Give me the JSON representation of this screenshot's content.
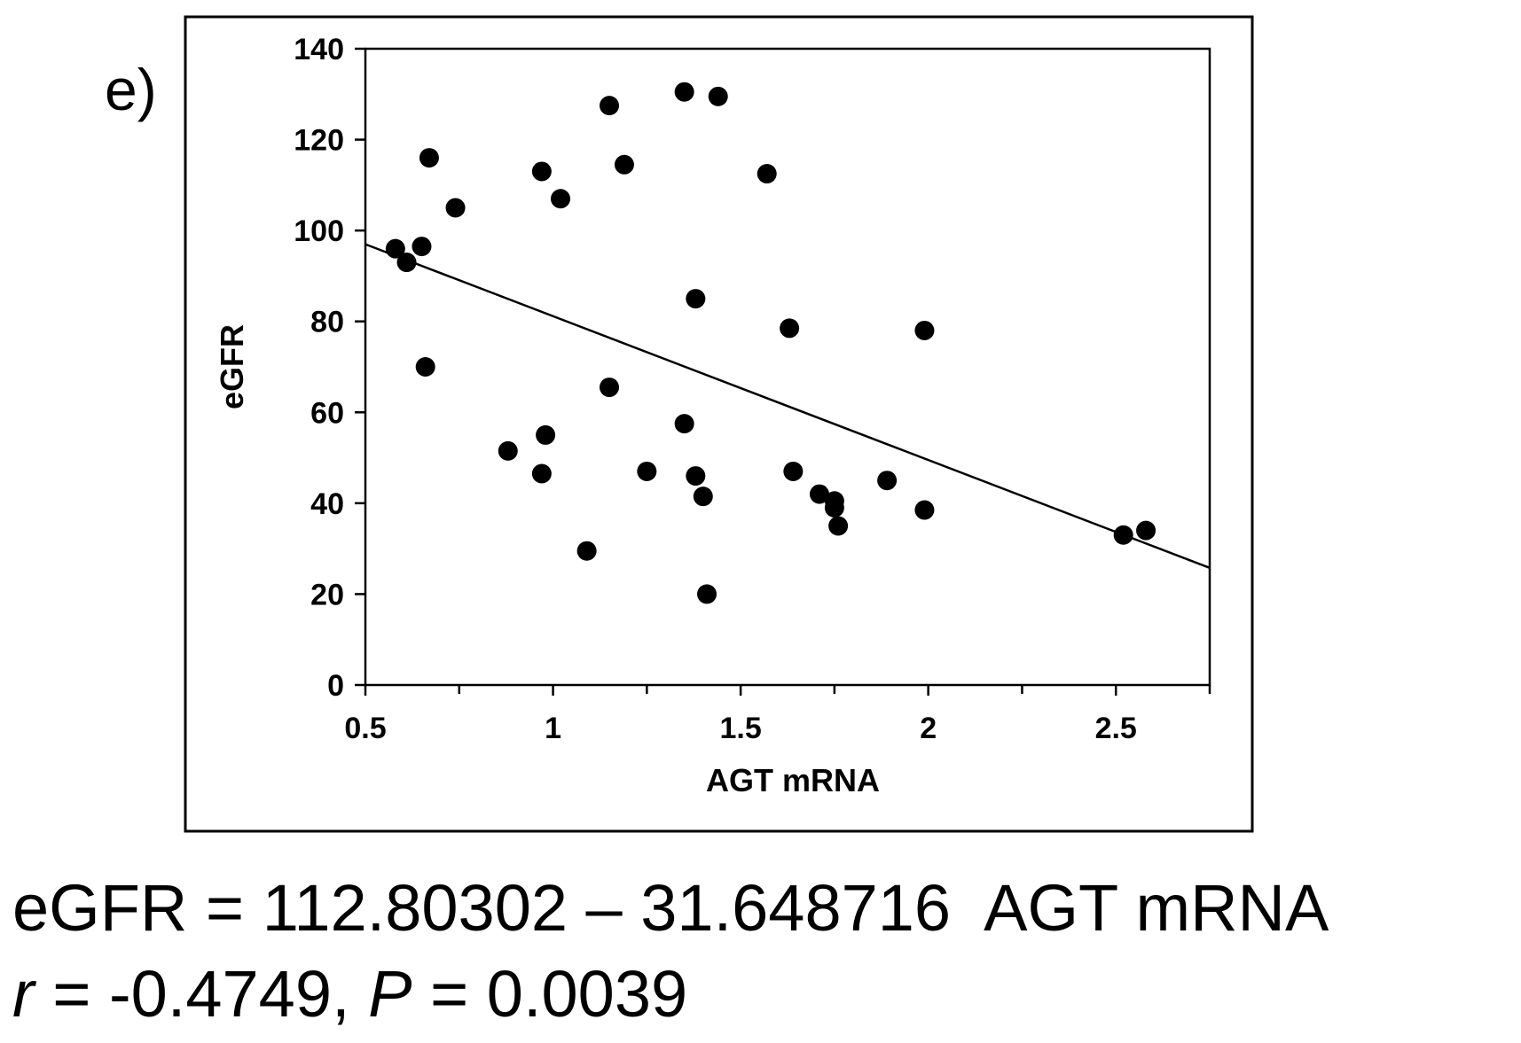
{
  "panel_label": "e)",
  "caption": {
    "equation": "eGFR = 112.80302 – 31.648716  AGT mRNA",
    "r_symbol": "r",
    "r_value": " = -0.4749, ",
    "p_symbol": "P",
    "p_value": " = 0.0039"
  },
  "chart_data": {
    "type": "scatter",
    "xlabel": "AGT mRNA",
    "ylabel": "eGFR",
    "xlim": [
      0.5,
      2.75
    ],
    "ylim": [
      0,
      140
    ],
    "xticks": [
      0.5,
      1,
      1.5,
      2,
      2.5
    ],
    "xtick_labels": [
      "0.5",
      "1",
      "1.5",
      "2",
      "2.5"
    ],
    "x_minor_ticks": [
      0.75,
      1.25,
      1.75,
      2.25,
      2.75
    ],
    "yticks": [
      0,
      20,
      40,
      60,
      80,
      100,
      120,
      140
    ],
    "ytick_labels": [
      "0",
      "20",
      "40",
      "60",
      "80",
      "100",
      "120",
      "140"
    ],
    "grid": false,
    "regression": {
      "intercept": 112.80302,
      "slope": -31.648716
    },
    "points": [
      {
        "x": 0.58,
        "y": 96
      },
      {
        "x": 0.61,
        "y": 93
      },
      {
        "x": 0.65,
        "y": 96.5
      },
      {
        "x": 0.66,
        "y": 70
      },
      {
        "x": 0.67,
        "y": 116
      },
      {
        "x": 0.74,
        "y": 105
      },
      {
        "x": 0.88,
        "y": 51.5
      },
      {
        "x": 0.97,
        "y": 113
      },
      {
        "x": 0.98,
        "y": 55
      },
      {
        "x": 0.97,
        "y": 46.5
      },
      {
        "x": 1.02,
        "y": 107
      },
      {
        "x": 1.09,
        "y": 29.5
      },
      {
        "x": 1.15,
        "y": 65.5
      },
      {
        "x": 1.15,
        "y": 127.5
      },
      {
        "x": 1.19,
        "y": 114.5
      },
      {
        "x": 1.25,
        "y": 47
      },
      {
        "x": 1.35,
        "y": 130.5
      },
      {
        "x": 1.35,
        "y": 57.5
      },
      {
        "x": 1.38,
        "y": 46
      },
      {
        "x": 1.38,
        "y": 85
      },
      {
        "x": 1.4,
        "y": 41.5
      },
      {
        "x": 1.41,
        "y": 20
      },
      {
        "x": 1.44,
        "y": 129.5
      },
      {
        "x": 1.57,
        "y": 112.5
      },
      {
        "x": 1.63,
        "y": 78.5
      },
      {
        "x": 1.64,
        "y": 47
      },
      {
        "x": 1.71,
        "y": 42
      },
      {
        "x": 1.75,
        "y": 40.5
      },
      {
        "x": 1.75,
        "y": 39
      },
      {
        "x": 1.76,
        "y": 35
      },
      {
        "x": 1.89,
        "y": 45
      },
      {
        "x": 1.99,
        "y": 78
      },
      {
        "x": 1.99,
        "y": 38.5
      },
      {
        "x": 2.52,
        "y": 33
      },
      {
        "x": 2.58,
        "y": 34
      }
    ]
  }
}
